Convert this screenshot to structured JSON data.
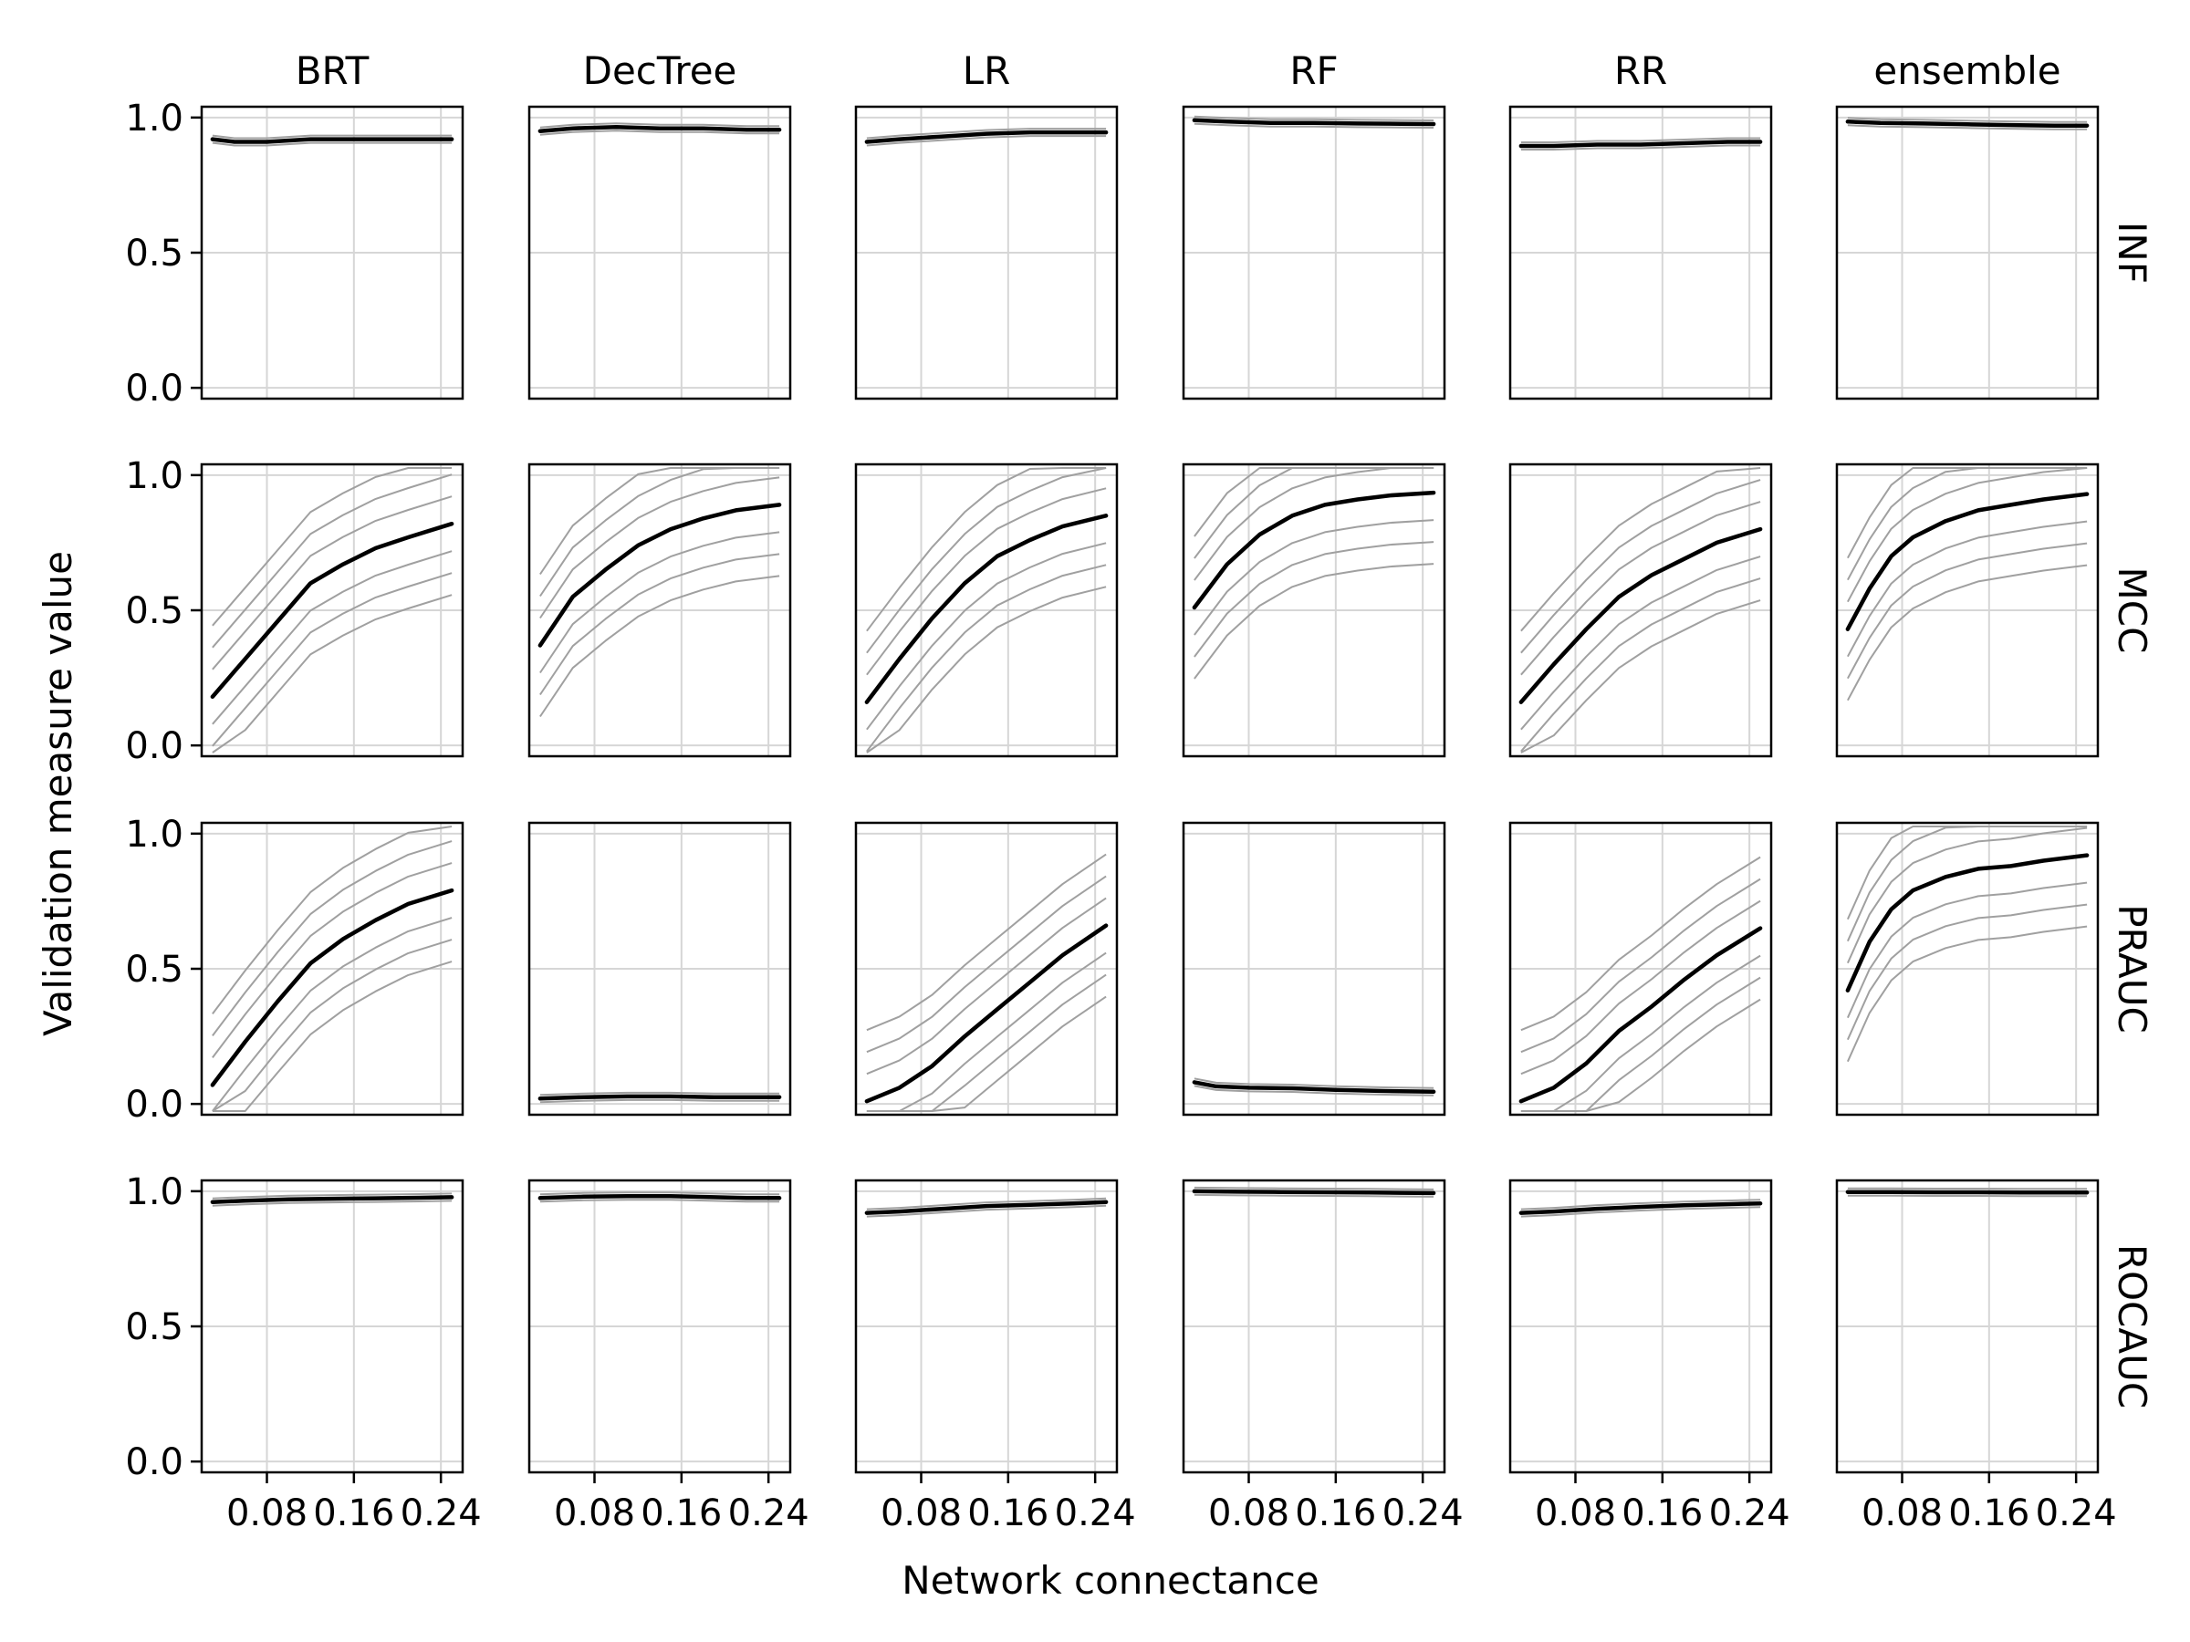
{
  "chart_data": {
    "type": "line",
    "xlabel": "Network connectance",
    "ylabel": "Validation measure value",
    "columns": [
      "BRT",
      "DecTree",
      "LR",
      "RF",
      "RR",
      "ensemble"
    ],
    "rows": [
      "INF",
      "MCC",
      "PRAUC",
      "ROCAUC"
    ],
    "xlim": [
      0.02,
      0.26
    ],
    "ylim": [
      -0.04,
      1.04
    ],
    "xticks": [
      0.08,
      0.16,
      0.24
    ],
    "xtick_labels": [
      "0.08",
      "0.16",
      "0.24"
    ],
    "yticks": [
      0.0,
      0.5,
      1.0
    ],
    "ytick_labels": [
      "0.0",
      "0.5",
      "1.0"
    ],
    "grid": true,
    "line_color": "#000000",
    "contour_color": "#a0a0a0",
    "series": [
      {
        "row": "INF",
        "col": "BRT",
        "x": [
          0.03,
          0.05,
          0.08,
          0.12,
          0.16,
          0.2,
          0.25
        ],
        "y": [
          0.92,
          0.91,
          0.91,
          0.92,
          0.92,
          0.92,
          0.92
        ]
      },
      {
        "row": "INF",
        "col": "DecTree",
        "x": [
          0.03,
          0.06,
          0.1,
          0.14,
          0.18,
          0.22,
          0.25
        ],
        "y": [
          0.95,
          0.96,
          0.965,
          0.96,
          0.96,
          0.955,
          0.955
        ]
      },
      {
        "row": "INF",
        "col": "LR",
        "x": [
          0.03,
          0.06,
          0.1,
          0.14,
          0.18,
          0.22,
          0.25
        ],
        "y": [
          0.91,
          0.92,
          0.93,
          0.94,
          0.945,
          0.945,
          0.945
        ]
      },
      {
        "row": "INF",
        "col": "RF",
        "x": [
          0.03,
          0.06,
          0.1,
          0.14,
          0.18,
          0.22,
          0.25
        ],
        "y": [
          0.99,
          0.985,
          0.98,
          0.98,
          0.978,
          0.977,
          0.976
        ]
      },
      {
        "row": "INF",
        "col": "RR",
        "x": [
          0.03,
          0.06,
          0.1,
          0.14,
          0.18,
          0.22,
          0.25
        ],
        "y": [
          0.895,
          0.895,
          0.9,
          0.9,
          0.905,
          0.91,
          0.91
        ]
      },
      {
        "row": "INF",
        "col": "ensemble",
        "x": [
          0.03,
          0.06,
          0.1,
          0.14,
          0.18,
          0.22,
          0.25
        ],
        "y": [
          0.985,
          0.98,
          0.978,
          0.975,
          0.972,
          0.97,
          0.97
        ]
      },
      {
        "row": "MCC",
        "col": "BRT",
        "x": [
          0.03,
          0.06,
          0.09,
          0.12,
          0.15,
          0.18,
          0.21,
          0.25
        ],
        "y": [
          0.18,
          0.32,
          0.46,
          0.6,
          0.67,
          0.73,
          0.77,
          0.82
        ]
      },
      {
        "row": "MCC",
        "col": "DecTree",
        "x": [
          0.03,
          0.06,
          0.09,
          0.12,
          0.15,
          0.18,
          0.21,
          0.25
        ],
        "y": [
          0.37,
          0.55,
          0.65,
          0.74,
          0.8,
          0.84,
          0.87,
          0.89
        ]
      },
      {
        "row": "MCC",
        "col": "LR",
        "x": [
          0.03,
          0.06,
          0.09,
          0.12,
          0.15,
          0.18,
          0.21,
          0.25
        ],
        "y": [
          0.16,
          0.32,
          0.47,
          0.6,
          0.7,
          0.76,
          0.81,
          0.85
        ]
      },
      {
        "row": "MCC",
        "col": "RF",
        "x": [
          0.03,
          0.06,
          0.09,
          0.12,
          0.15,
          0.18,
          0.21,
          0.25
        ],
        "y": [
          0.51,
          0.67,
          0.78,
          0.85,
          0.89,
          0.91,
          0.925,
          0.935
        ]
      },
      {
        "row": "MCC",
        "col": "RR",
        "x": [
          0.03,
          0.06,
          0.09,
          0.12,
          0.15,
          0.18,
          0.21,
          0.25
        ],
        "y": [
          0.16,
          0.3,
          0.43,
          0.55,
          0.63,
          0.69,
          0.75,
          0.8
        ]
      },
      {
        "row": "MCC",
        "col": "ensemble",
        "x": [
          0.03,
          0.05,
          0.07,
          0.09,
          0.12,
          0.15,
          0.18,
          0.21,
          0.25
        ],
        "y": [
          0.43,
          0.58,
          0.7,
          0.77,
          0.83,
          0.87,
          0.89,
          0.91,
          0.93
        ]
      },
      {
        "row": "PRAUC",
        "col": "BRT",
        "x": [
          0.03,
          0.06,
          0.09,
          0.12,
          0.15,
          0.18,
          0.21,
          0.25
        ],
        "y": [
          0.07,
          0.23,
          0.38,
          0.52,
          0.61,
          0.68,
          0.74,
          0.79
        ]
      },
      {
        "row": "PRAUC",
        "col": "DecTree",
        "x": [
          0.03,
          0.07,
          0.11,
          0.15,
          0.19,
          0.22,
          0.25
        ],
        "y": [
          0.02,
          0.025,
          0.028,
          0.028,
          0.025,
          0.025,
          0.025
        ]
      },
      {
        "row": "PRAUC",
        "col": "LR",
        "x": [
          0.03,
          0.06,
          0.09,
          0.12,
          0.15,
          0.18,
          0.21,
          0.25
        ],
        "y": [
          0.01,
          0.06,
          0.14,
          0.25,
          0.35,
          0.45,
          0.55,
          0.66
        ]
      },
      {
        "row": "PRAUC",
        "col": "RF",
        "x": [
          0.03,
          0.05,
          0.08,
          0.12,
          0.16,
          0.2,
          0.25
        ],
        "y": [
          0.08,
          0.065,
          0.06,
          0.058,
          0.052,
          0.048,
          0.045
        ]
      },
      {
        "row": "PRAUC",
        "col": "RR",
        "x": [
          0.03,
          0.06,
          0.09,
          0.12,
          0.15,
          0.18,
          0.21,
          0.25
        ],
        "y": [
          0.01,
          0.06,
          0.15,
          0.27,
          0.36,
          0.46,
          0.55,
          0.65
        ]
      },
      {
        "row": "PRAUC",
        "col": "ensemble",
        "x": [
          0.03,
          0.05,
          0.07,
          0.09,
          0.12,
          0.15,
          0.18,
          0.21,
          0.25
        ],
        "y": [
          0.42,
          0.6,
          0.72,
          0.79,
          0.84,
          0.87,
          0.88,
          0.9,
          0.92
        ]
      },
      {
        "row": "ROCAUC",
        "col": "BRT",
        "x": [
          0.03,
          0.06,
          0.1,
          0.14,
          0.18,
          0.22,
          0.25
        ],
        "y": [
          0.96,
          0.965,
          0.97,
          0.972,
          0.974,
          0.976,
          0.978
        ]
      },
      {
        "row": "ROCAUC",
        "col": "DecTree",
        "x": [
          0.03,
          0.07,
          0.11,
          0.15,
          0.19,
          0.22,
          0.25
        ],
        "y": [
          0.975,
          0.98,
          0.982,
          0.982,
          0.978,
          0.975,
          0.975
        ]
      },
      {
        "row": "ROCAUC",
        "col": "LR",
        "x": [
          0.03,
          0.06,
          0.1,
          0.14,
          0.18,
          0.22,
          0.25
        ],
        "y": [
          0.92,
          0.925,
          0.935,
          0.945,
          0.95,
          0.955,
          0.96
        ]
      },
      {
        "row": "ROCAUC",
        "col": "RF",
        "x": [
          0.03,
          0.07,
          0.11,
          0.15,
          0.19,
          0.22,
          0.25
        ],
        "y": [
          1.0,
          0.998,
          0.997,
          0.996,
          0.995,
          0.994,
          0.993
        ]
      },
      {
        "row": "ROCAUC",
        "col": "RR",
        "x": [
          0.03,
          0.06,
          0.1,
          0.14,
          0.18,
          0.22,
          0.25
        ],
        "y": [
          0.92,
          0.925,
          0.935,
          0.942,
          0.948,
          0.952,
          0.955
        ]
      },
      {
        "row": "ROCAUC",
        "col": "ensemble",
        "x": [
          0.03,
          0.07,
          0.11,
          0.15,
          0.19,
          0.22,
          0.25
        ],
        "y": [
          0.997,
          0.997,
          0.996,
          0.996,
          0.995,
          0.995,
          0.995
        ]
      }
    ]
  }
}
